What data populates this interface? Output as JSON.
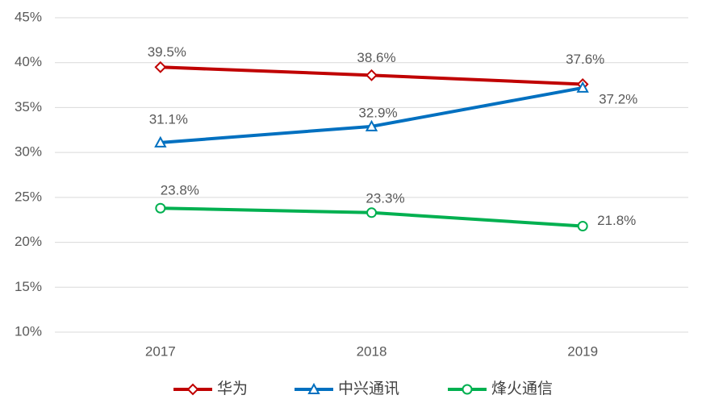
{
  "chart_data": {
    "type": "line",
    "categories": [
      "2017",
      "2018",
      "2019"
    ],
    "series": [
      {
        "name": "华为",
        "color": "#c00000",
        "marker": "diamond",
        "values": [
          39.5,
          38.6,
          37.6
        ],
        "value_labels": [
          "39.5%",
          "38.6%",
          "37.6%"
        ]
      },
      {
        "name": "中兴通讯",
        "color": "#0070c0",
        "marker": "triangle",
        "values": [
          31.1,
          32.9,
          37.2
        ],
        "value_labels": [
          "31.1%",
          "32.9%",
          "37.2%"
        ]
      },
      {
        "name": "烽火通信",
        "color": "#00b050",
        "marker": "circle",
        "values": [
          23.8,
          23.3,
          21.8
        ],
        "value_labels": [
          "23.8%",
          "23.3%",
          "21.8%"
        ]
      }
    ],
    "ylim": [
      10,
      45
    ],
    "yticks": [
      {
        "value": 10,
        "label": "10%"
      },
      {
        "value": 15,
        "label": "15%"
      },
      {
        "value": 20,
        "label": "20%"
      },
      {
        "value": 25,
        "label": "25%"
      },
      {
        "value": 30,
        "label": "30%"
      },
      {
        "value": 35,
        "label": "35%"
      },
      {
        "value": 40,
        "label": "40%"
      },
      {
        "value": 45,
        "label": "45%"
      }
    ],
    "grid": true,
    "legend": "bottom"
  }
}
